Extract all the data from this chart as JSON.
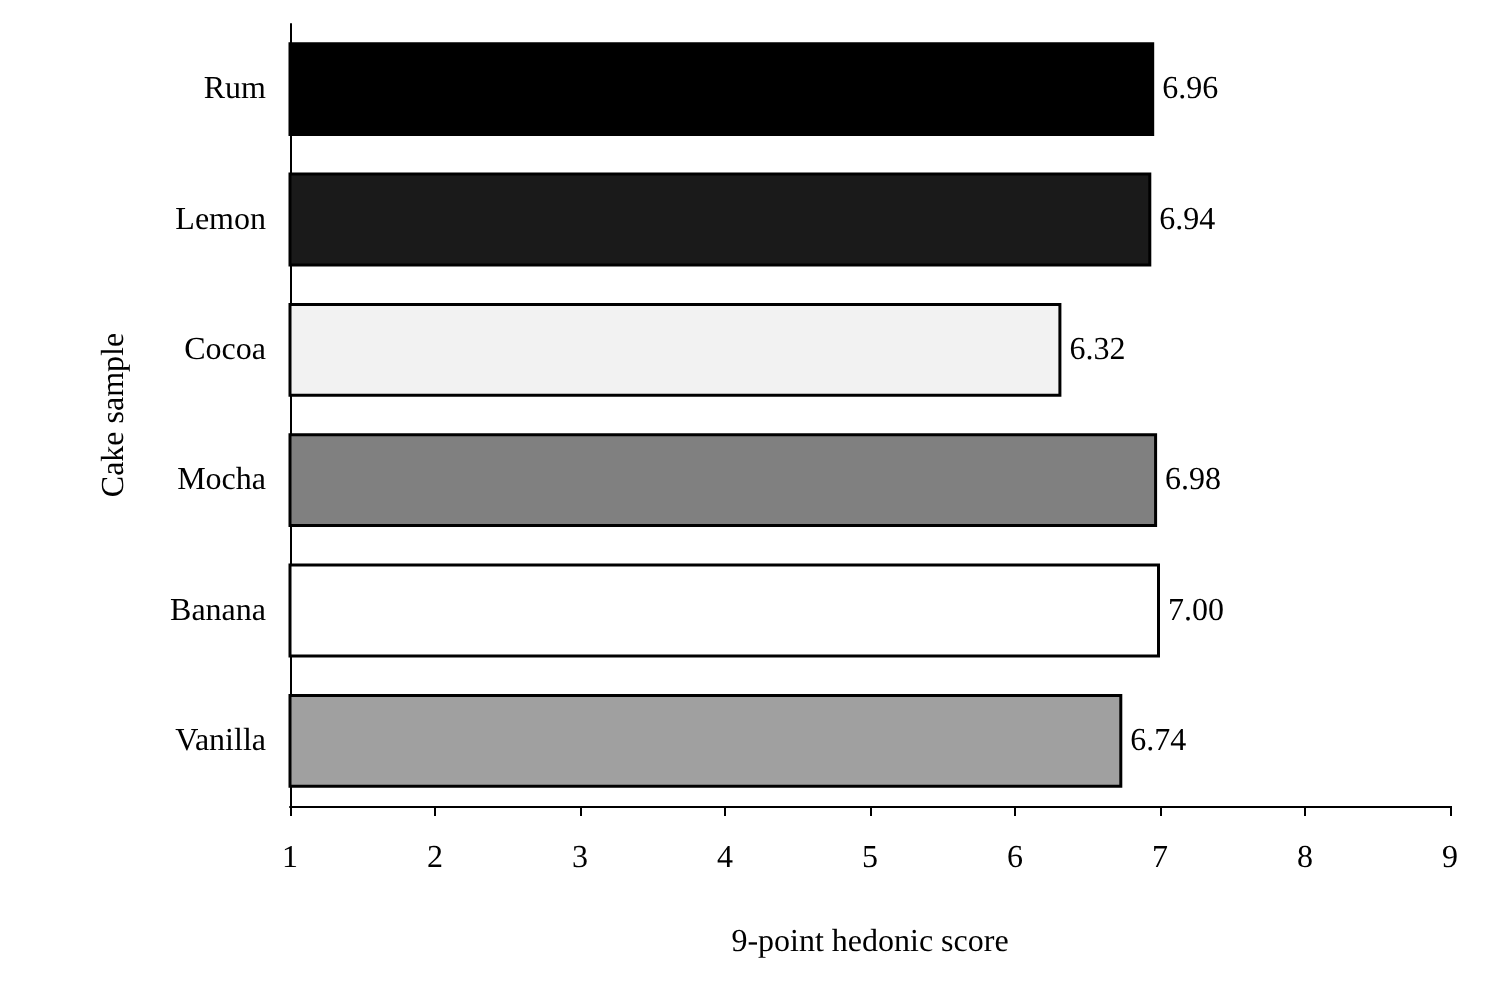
{
  "chart_data": {
    "type": "bar",
    "orientation": "horizontal",
    "xlabel": "9-point hedonic score",
    "ylabel": "Cake sample",
    "categories": [
      "Rum",
      "Lemon",
      "Cocoa",
      "Mocha",
      "Banana",
      "Vanilla"
    ],
    "values": [
      6.96,
      6.94,
      6.32,
      6.98,
      7.0,
      6.74
    ],
    "value_labels": [
      "6.96",
      "6.94",
      "6.32",
      "6.98",
      "7.00",
      "6.74"
    ],
    "colors": [
      "#000000",
      "#1a1a1a",
      "#f2f2f2",
      "#808080",
      "#ffffff",
      "#a0a0a0"
    ],
    "xlim": [
      1,
      9
    ],
    "xticks": [
      1,
      2,
      3,
      4,
      5,
      6,
      7,
      8,
      9
    ],
    "grid": false
  }
}
